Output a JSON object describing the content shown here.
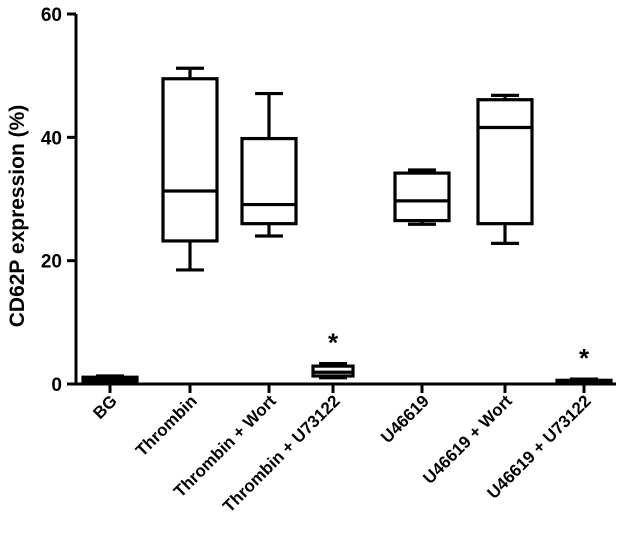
{
  "chart_data": {
    "type": "box",
    "ylabel": "CD62P expression (%)",
    "xlabel": "",
    "ylim": [
      0,
      60
    ],
    "yticks": [
      0,
      20,
      40,
      60
    ],
    "grid": false,
    "categories": [
      "BG",
      "Thrombin",
      "Thrombin + Wort",
      "Thrombin + U73122",
      "U46619",
      "U46619 + Wort",
      "U46619 + U73122"
    ],
    "boxes": [
      {
        "min": 0.3,
        "q1": 0.5,
        "median": 0.8,
        "q3": 1.1,
        "max": 1.3
      },
      {
        "min": 18.5,
        "q1": 23.2,
        "median": 31.3,
        "q3": 49.5,
        "max": 51.2
      },
      {
        "min": 24.0,
        "q1": 26.0,
        "median": 29.1,
        "q3": 39.8,
        "max": 47.1
      },
      {
        "min": 1.0,
        "q1": 1.3,
        "median": 1.9,
        "q3": 2.9,
        "max": 3.3
      },
      {
        "min": 25.9,
        "q1": 26.5,
        "median": 29.7,
        "q3": 34.2,
        "max": 34.7
      },
      {
        "min": 22.8,
        "q1": 26.0,
        "median": 41.6,
        "q3": 46.1,
        "max": 46.8
      },
      {
        "min": 0.2,
        "q1": 0.3,
        "median": 0.4,
        "q3": 0.6,
        "max": 0.8
      }
    ],
    "annotations": [
      {
        "category": "Thrombin + U73122",
        "text": "*"
      },
      {
        "category": "U46619 + U73122",
        "text": "*"
      }
    ]
  }
}
